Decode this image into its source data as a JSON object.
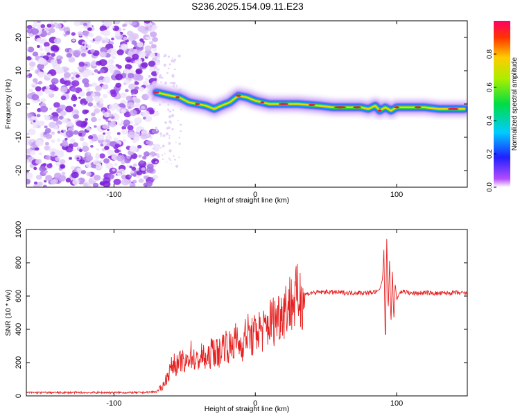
{
  "title": "S236.2025.154.09.11.E23",
  "colors": {
    "snr_line": "#e62020",
    "ridge_core": "#e81f3a",
    "noise": "#8a2be2"
  },
  "chart_data": [
    {
      "type": "heatmap",
      "xlabel": "Height of straight line (km)",
      "ylabel": "Frequency (Hz)",
      "xlim": [
        -162,
        150
      ],
      "ylim": [
        -25,
        25
      ],
      "xticks": [
        "-100",
        "0",
        "100"
      ],
      "xtick_values": [
        -100,
        0,
        100
      ],
      "yticks": [
        "-20",
        "-10",
        "0",
        "10",
        "20"
      ],
      "ytick_values": [
        -20,
        -10,
        0,
        10,
        20
      ],
      "noise_region_x": [
        -162,
        -72
      ],
      "ridge": {
        "x": [
          -70,
          -60,
          -54,
          -47,
          -41,
          -35,
          -29,
          -24,
          -18,
          -12,
          -6,
          0,
          5,
          10,
          20,
          30,
          45,
          55,
          65,
          75,
          80,
          85,
          88,
          92,
          96,
          100,
          110,
          120,
          130,
          140,
          148
        ],
        "freq_hz": [
          3.5,
          2.5,
          2.0,
          0.5,
          0.0,
          -0.5,
          -1.5,
          -0.5,
          0.5,
          2.5,
          2.0,
          1.0,
          0.5,
          0.0,
          0.0,
          0.0,
          -0.5,
          -1.0,
          -1.0,
          -1.0,
          -1.5,
          -0.5,
          -2.0,
          -1.0,
          -2.0,
          -1.0,
          -1.0,
          -1.0,
          -1.5,
          -1.5,
          -1.5
        ]
      },
      "colorbar": {
        "label": "Normalized spectral amplitude",
        "ticks": [
          "0.0",
          "0.2",
          "0.4",
          "0.6",
          "0.8"
        ],
        "tick_values": [
          0.0,
          0.2,
          0.4,
          0.6,
          0.8
        ],
        "range": [
          0,
          1
        ]
      },
      "grid": false
    },
    {
      "type": "line",
      "xlabel": "Height of straight line (km)",
      "ylabel": "SNR (10 * v/v)",
      "xlim": [
        -162,
        150
      ],
      "ylim": [
        0,
        1000
      ],
      "xticks": [
        "-100",
        "0",
        "100"
      ],
      "xtick_values": [
        -100,
        0,
        100
      ],
      "yticks": [
        "0",
        "200",
        "400",
        "600",
        "800",
        "1000"
      ],
      "ytick_values": [
        0,
        200,
        400,
        600,
        800,
        1000
      ],
      "series": [
        {
          "x": [
            -162,
            -140,
            -120,
            -100,
            -80,
            -70,
            -66,
            -62,
            -58,
            -55,
            -52,
            -50,
            -46,
            -42,
            -38,
            -34,
            -30,
            -26,
            -22,
            -18,
            -14,
            -10,
            -6,
            -2,
            2,
            6,
            10,
            15,
            20,
            25,
            30,
            35,
            40,
            50,
            60,
            70,
            80,
            85,
            88,
            90,
            91,
            92,
            93,
            94,
            95,
            96,
            97,
            98,
            99,
            100,
            102,
            105,
            110,
            120,
            130,
            140,
            150
          ],
          "values": [
            20,
            20,
            20,
            20,
            20,
            25,
            50,
            120,
            200,
            180,
            220,
            170,
            260,
            200,
            240,
            210,
            280,
            250,
            320,
            290,
            330,
            300,
            380,
            350,
            400,
            390,
            440,
            470,
            520,
            560,
            590,
            610,
            620,
            625,
            620,
            620,
            620,
            625,
            640,
            700,
            880,
            280,
            950,
            500,
            820,
            420,
            760,
            450,
            680,
            580,
            620,
            630,
            615,
            620,
            615,
            620,
            615
          ]
        }
      ],
      "grid": false
    }
  ]
}
